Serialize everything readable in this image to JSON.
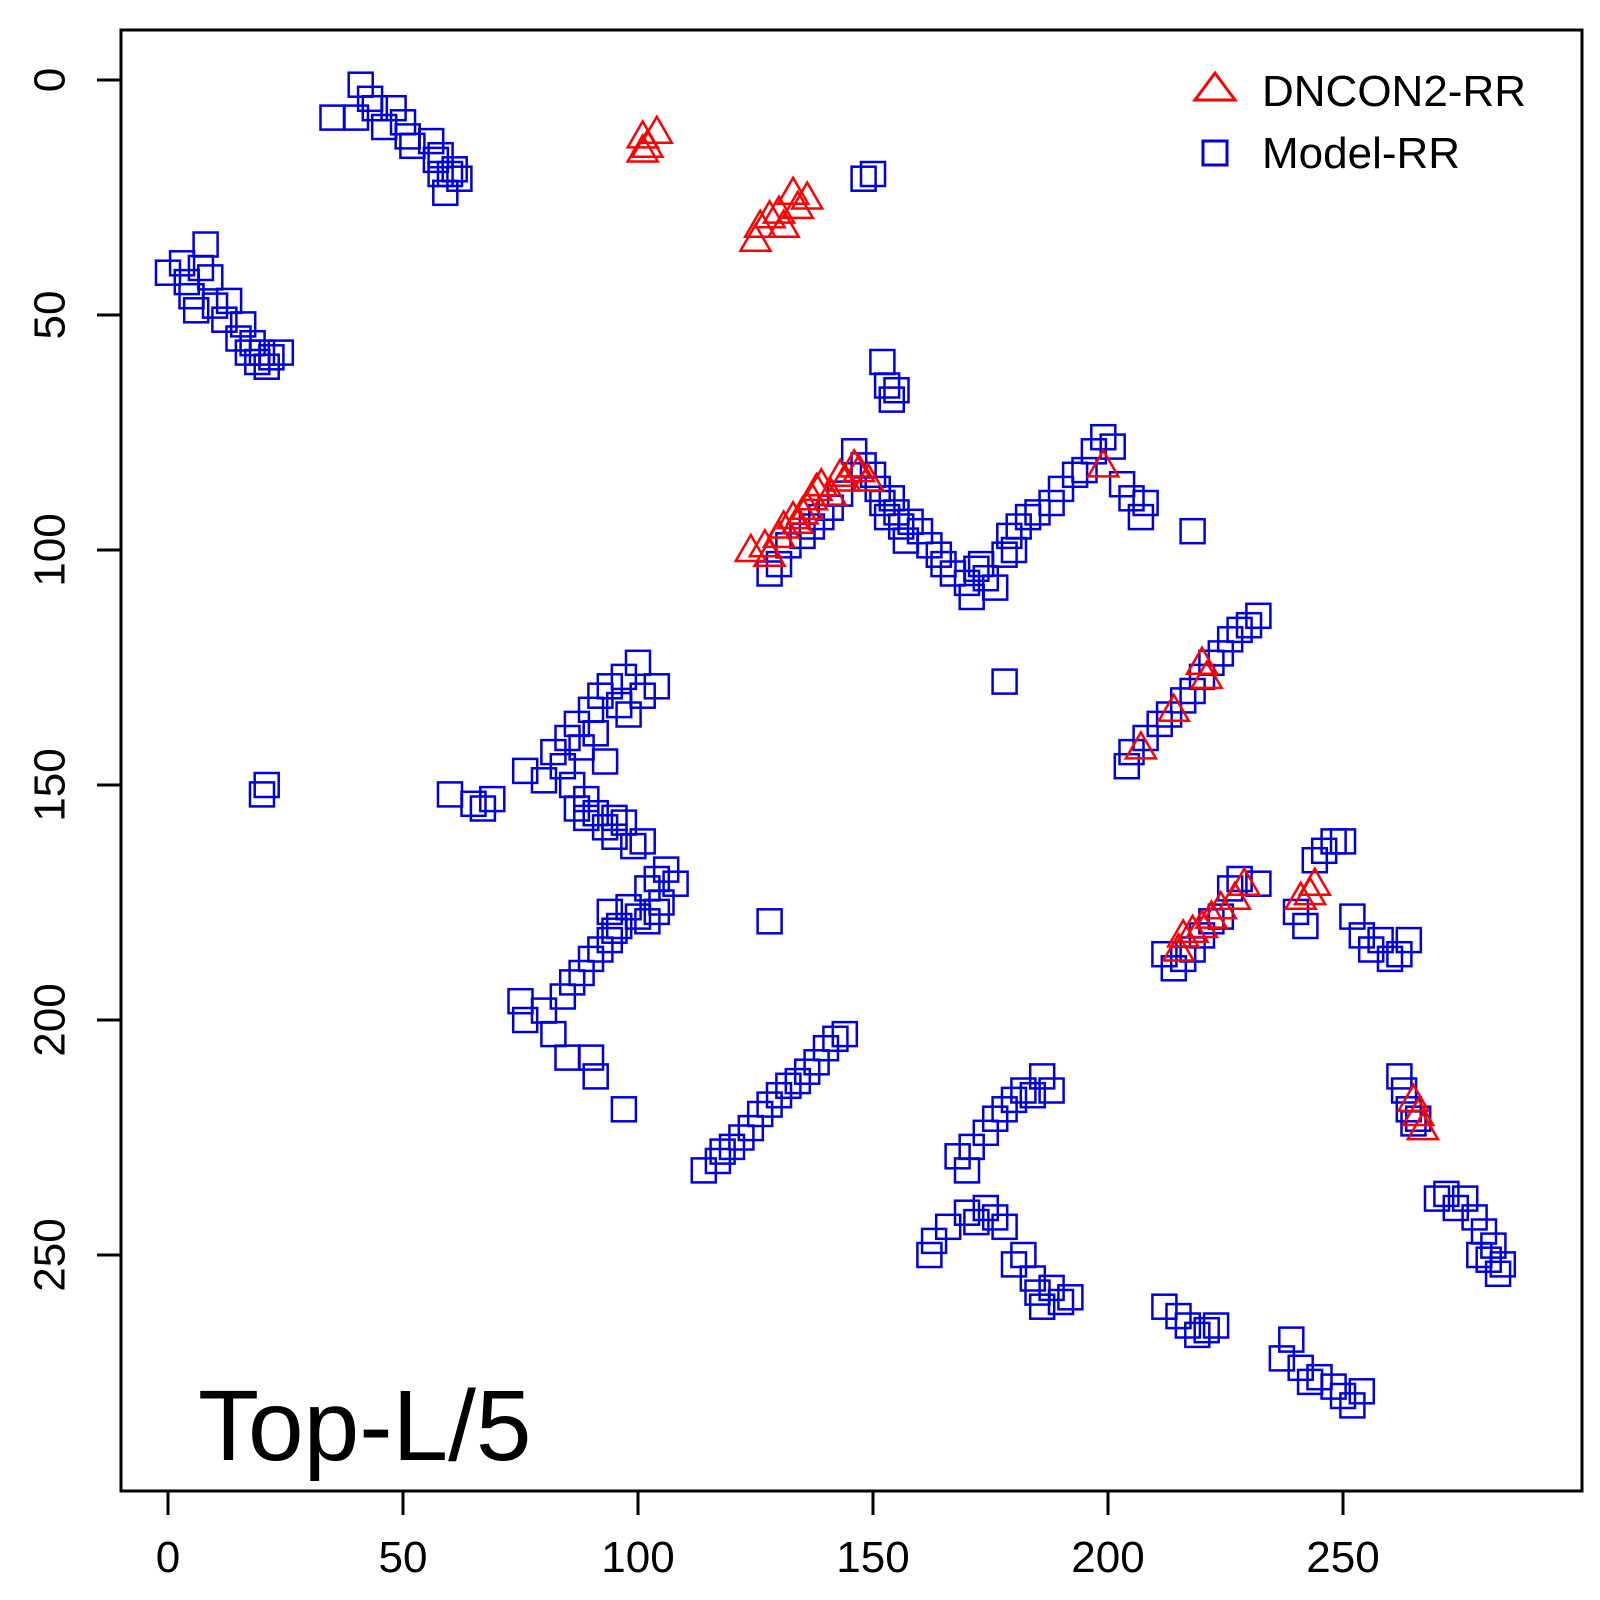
{
  "chart_data": {
    "type": "scatter",
    "title": "",
    "xlabel": "",
    "ylabel": "",
    "xlim": [
      -10,
      300
    ],
    "ylim": [
      300,
      -10
    ],
    "y_inverted": true,
    "x_ticks": [
      0,
      50,
      100,
      150,
      200,
      250
    ],
    "y_ticks": [
      0,
      50,
      100,
      150,
      200,
      250
    ],
    "grid": false,
    "legend_position": "top-right",
    "annotation": "Top-L/5",
    "series": [
      {
        "name": "DNCON2-RR",
        "marker": "triangle",
        "color": "#ff0000",
        "points": [
          [
            101,
            12
          ],
          [
            101,
            15
          ],
          [
            102,
            14
          ],
          [
            104,
            11
          ],
          [
            125,
            34
          ],
          [
            126,
            31
          ],
          [
            128,
            29
          ],
          [
            130,
            28
          ],
          [
            131,
            31
          ],
          [
            133,
            24
          ],
          [
            134,
            27
          ],
          [
            136,
            25
          ],
          [
            124,
            100
          ],
          [
            127,
            99
          ],
          [
            128,
            101
          ],
          [
            130,
            97
          ],
          [
            131,
            95
          ],
          [
            133,
            93
          ],
          [
            134,
            94
          ],
          [
            135,
            92
          ],
          [
            136,
            91
          ],
          [
            137,
            89
          ],
          [
            138,
            87
          ],
          [
            139,
            86
          ],
          [
            141,
            88
          ],
          [
            143,
            84
          ],
          [
            144,
            85
          ],
          [
            146,
            82
          ],
          [
            147,
            83
          ],
          [
            149,
            85
          ],
          [
            199,
            82
          ],
          [
            207,
            142
          ],
          [
            214,
            134
          ],
          [
            220,
            124
          ],
          [
            221,
            127
          ],
          [
            215,
            185
          ],
          [
            216,
            182
          ],
          [
            218,
            181
          ],
          [
            220,
            180
          ],
          [
            222,
            178
          ],
          [
            224,
            176
          ],
          [
            227,
            174
          ],
          [
            229,
            171
          ],
          [
            241,
            174
          ],
          [
            243,
            173
          ],
          [
            244,
            171
          ],
          [
            265,
            217
          ],
          [
            266,
            220
          ],
          [
            267,
            223
          ]
        ]
      },
      {
        "name": "Model-RR",
        "marker": "square",
        "color": "#0000dd",
        "points": [
          [
            35,
            8
          ],
          [
            40,
            8
          ],
          [
            41,
            1
          ],
          [
            43,
            4
          ],
          [
            44,
            6
          ],
          [
            46,
            10
          ],
          [
            48,
            6
          ],
          [
            50,
            9
          ],
          [
            51,
            12
          ],
          [
            52,
            14
          ],
          [
            56,
            13
          ],
          [
            57,
            17
          ],
          [
            58,
            16
          ],
          [
            58,
            20
          ],
          [
            59,
            24
          ],
          [
            60,
            20
          ],
          [
            61,
            19
          ],
          [
            62,
            21
          ],
          [
            0,
            41
          ],
          [
            3,
            39
          ],
          [
            4,
            43
          ],
          [
            5,
            46
          ],
          [
            6,
            49
          ],
          [
            7,
            40
          ],
          [
            8,
            35
          ],
          [
            9,
            42
          ],
          [
            10,
            48
          ],
          [
            12,
            51
          ],
          [
            13,
            47
          ],
          [
            15,
            55
          ],
          [
            16,
            52
          ],
          [
            17,
            58
          ],
          [
            18,
            56
          ],
          [
            19,
            60
          ],
          [
            20,
            58
          ],
          [
            21,
            61
          ],
          [
            22,
            59
          ],
          [
            24,
            58
          ],
          [
            148,
            21
          ],
          [
            150,
            20
          ],
          [
            152,
            60
          ],
          [
            153,
            65
          ],
          [
            154,
            68
          ],
          [
            155,
            66
          ],
          [
            146,
            79
          ],
          [
            148,
            82
          ],
          [
            150,
            84
          ],
          [
            151,
            87
          ],
          [
            152,
            90
          ],
          [
            153,
            93
          ],
          [
            154,
            89
          ],
          [
            155,
            92
          ],
          [
            156,
            95
          ],
          [
            157,
            98
          ],
          [
            158,
            94
          ],
          [
            160,
            96
          ],
          [
            162,
            99
          ],
          [
            164,
            101
          ],
          [
            165,
            103
          ],
          [
            167,
            105
          ],
          [
            170,
            107
          ],
          [
            171,
            110
          ],
          [
            172,
            104
          ],
          [
            173,
            103
          ],
          [
            174,
            106
          ],
          [
            176,
            108
          ],
          [
            178,
            101
          ],
          [
            179,
            97
          ],
          [
            180,
            100
          ],
          [
            181,
            95
          ],
          [
            183,
            93
          ],
          [
            185,
            92
          ],
          [
            188,
            90
          ],
          [
            190,
            87
          ],
          [
            193,
            84
          ],
          [
            195,
            83
          ],
          [
            197,
            79
          ],
          [
            199,
            76
          ],
          [
            201,
            78
          ],
          [
            203,
            86
          ],
          [
            205,
            89
          ],
          [
            207,
            93
          ],
          [
            208,
            90
          ],
          [
            218,
            96
          ],
          [
            128,
            105
          ],
          [
            130,
            103
          ],
          [
            132,
            99
          ],
          [
            135,
            97
          ],
          [
            137,
            95
          ],
          [
            139,
            93
          ],
          [
            141,
            91
          ],
          [
            143,
            88
          ],
          [
            178,
            128
          ],
          [
            204,
            146
          ],
          [
            205,
            143
          ],
          [
            208,
            140
          ],
          [
            211,
            137
          ],
          [
            213,
            135
          ],
          [
            216,
            132
          ],
          [
            218,
            130
          ],
          [
            220,
            127
          ],
          [
            222,
            124
          ],
          [
            224,
            122
          ],
          [
            226,
            119
          ],
          [
            228,
            117
          ],
          [
            230,
            116
          ],
          [
            232,
            114
          ],
          [
            21,
            150
          ],
          [
            20,
            152
          ],
          [
            60,
            152
          ],
          [
            65,
            154
          ],
          [
            67,
            155
          ],
          [
            69,
            153
          ],
          [
            76,
            147
          ],
          [
            80,
            149
          ],
          [
            82,
            143
          ],
          [
            84,
            146
          ],
          [
            85,
            140
          ],
          [
            86,
            150
          ],
          [
            87,
            137
          ],
          [
            88,
            142
          ],
          [
            89,
            153
          ],
          [
            90,
            134
          ],
          [
            91,
            139
          ],
          [
            92,
            131
          ],
          [
            93,
            145
          ],
          [
            94,
            129
          ],
          [
            95,
            157
          ],
          [
            96,
            133
          ],
          [
            97,
            127
          ],
          [
            98,
            135
          ],
          [
            100,
            124
          ],
          [
            101,
            131
          ],
          [
            104,
            129
          ],
          [
            87,
            155
          ],
          [
            89,
            157
          ],
          [
            91,
            156
          ],
          [
            93,
            159
          ],
          [
            95,
            161
          ],
          [
            97,
            158
          ],
          [
            99,
            163
          ],
          [
            101,
            162
          ],
          [
            102,
            172
          ],
          [
            104,
            170
          ],
          [
            105,
            175
          ],
          [
            106,
            168
          ],
          [
            108,
            171
          ],
          [
            94,
            177
          ],
          [
            96,
            180
          ],
          [
            98,
            176
          ],
          [
            100,
            178
          ],
          [
            102,
            179
          ],
          [
            104,
            177
          ],
          [
            75,
            196
          ],
          [
            76,
            200
          ],
          [
            80,
            198
          ],
          [
            82,
            203
          ],
          [
            84,
            195
          ],
          [
            86,
            192
          ],
          [
            88,
            190
          ],
          [
            90,
            187
          ],
          [
            92,
            185
          ],
          [
            94,
            183
          ],
          [
            95,
            181
          ],
          [
            90,
            208
          ],
          [
            91,
            212
          ],
          [
            97,
            219
          ],
          [
            85,
            208
          ],
          [
            128,
            179
          ],
          [
            114,
            232
          ],
          [
            117,
            230
          ],
          [
            118,
            228
          ],
          [
            120,
            227
          ],
          [
            122,
            225
          ],
          [
            124,
            223
          ],
          [
            126,
            220
          ],
          [
            128,
            218
          ],
          [
            130,
            216
          ],
          [
            132,
            214
          ],
          [
            134,
            213
          ],
          [
            136,
            211
          ],
          [
            138,
            209
          ],
          [
            140,
            206
          ],
          [
            142,
            204
          ],
          [
            144,
            203
          ],
          [
            168,
            229
          ],
          [
            170,
            232
          ],
          [
            171,
            227
          ],
          [
            174,
            224
          ],
          [
            176,
            221
          ],
          [
            178,
            219
          ],
          [
            180,
            217
          ],
          [
            182,
            215
          ],
          [
            184,
            216
          ],
          [
            186,
            212
          ],
          [
            188,
            215
          ],
          [
            162,
            250
          ],
          [
            163,
            247
          ],
          [
            166,
            244
          ],
          [
            170,
            241
          ],
          [
            172,
            243
          ],
          [
            174,
            240
          ],
          [
            176,
            242
          ],
          [
            178,
            244
          ],
          [
            180,
            252
          ],
          [
            182,
            250
          ],
          [
            184,
            255
          ],
          [
            185,
            258
          ],
          [
            186,
            261
          ],
          [
            188,
            257
          ],
          [
            190,
            260
          ],
          [
            192,
            259
          ],
          [
            212,
            261
          ],
          [
            215,
            263
          ],
          [
            217,
            265
          ],
          [
            219,
            267
          ],
          [
            221,
            266
          ],
          [
            223,
            265
          ],
          [
            237,
            272
          ],
          [
            239,
            268
          ],
          [
            241,
            274
          ],
          [
            243,
            277
          ],
          [
            245,
            276
          ],
          [
            248,
            278
          ],
          [
            250,
            280
          ],
          [
            252,
            282
          ],
          [
            254,
            279
          ],
          [
            212,
            186
          ],
          [
            214,
            189
          ],
          [
            216,
            187
          ],
          [
            218,
            185
          ],
          [
            220,
            182
          ],
          [
            222,
            179
          ],
          [
            224,
            178
          ],
          [
            226,
            172
          ],
          [
            228,
            170
          ],
          [
            232,
            171
          ],
          [
            240,
            177
          ],
          [
            242,
            180
          ],
          [
            244,
            166
          ],
          [
            246,
            164
          ],
          [
            248,
            162
          ],
          [
            250,
            162
          ],
          [
            252,
            178
          ],
          [
            254,
            182
          ],
          [
            256,
            185
          ],
          [
            258,
            183
          ],
          [
            260,
            187
          ],
          [
            262,
            186
          ],
          [
            264,
            183
          ],
          [
            262,
            212
          ],
          [
            263,
            215
          ],
          [
            264,
            219
          ],
          [
            265,
            222
          ],
          [
            266,
            221
          ],
          [
            270,
            238
          ],
          [
            272,
            237
          ],
          [
            274,
            240
          ],
          [
            276,
            238
          ],
          [
            278,
            242
          ],
          [
            280,
            245
          ],
          [
            282,
            248
          ],
          [
            284,
            252
          ],
          [
            283,
            254
          ],
          [
            281,
            251
          ],
          [
            279,
            250
          ]
        ]
      }
    ]
  }
}
